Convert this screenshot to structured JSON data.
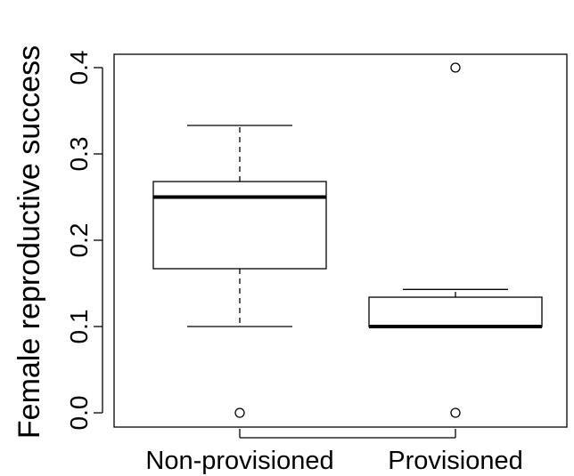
{
  "chart_data": {
    "type": "boxplot",
    "title": "",
    "xlabel": "",
    "ylabel": "Female reproductive success",
    "ylim": [
      0.0,
      0.4
    ],
    "yticks": [
      {
        "value": 0.0,
        "label": "0.0"
      },
      {
        "value": 0.1,
        "label": "0.1"
      },
      {
        "value": 0.2,
        "label": "0.2"
      },
      {
        "value": 0.3,
        "label": "0.3"
      },
      {
        "value": 0.4,
        "label": "0.4"
      }
    ],
    "categories": [
      "Non-provisioned",
      "Provisioned"
    ],
    "boxes": [
      {
        "category": "Non-provisioned",
        "whisker_low": 0.1,
        "q1": 0.167,
        "median": 0.25,
        "q3": 0.268,
        "whisker_high": 0.333,
        "outliers": [
          0.0
        ]
      },
      {
        "category": "Provisioned",
        "whisker_low": 0.1,
        "q1": 0.1,
        "median": 0.1,
        "q3": 0.134,
        "whisker_high": 0.143,
        "outliers": [
          0.4,
          0.0
        ]
      }
    ],
    "grid": false,
    "legend": "none"
  }
}
